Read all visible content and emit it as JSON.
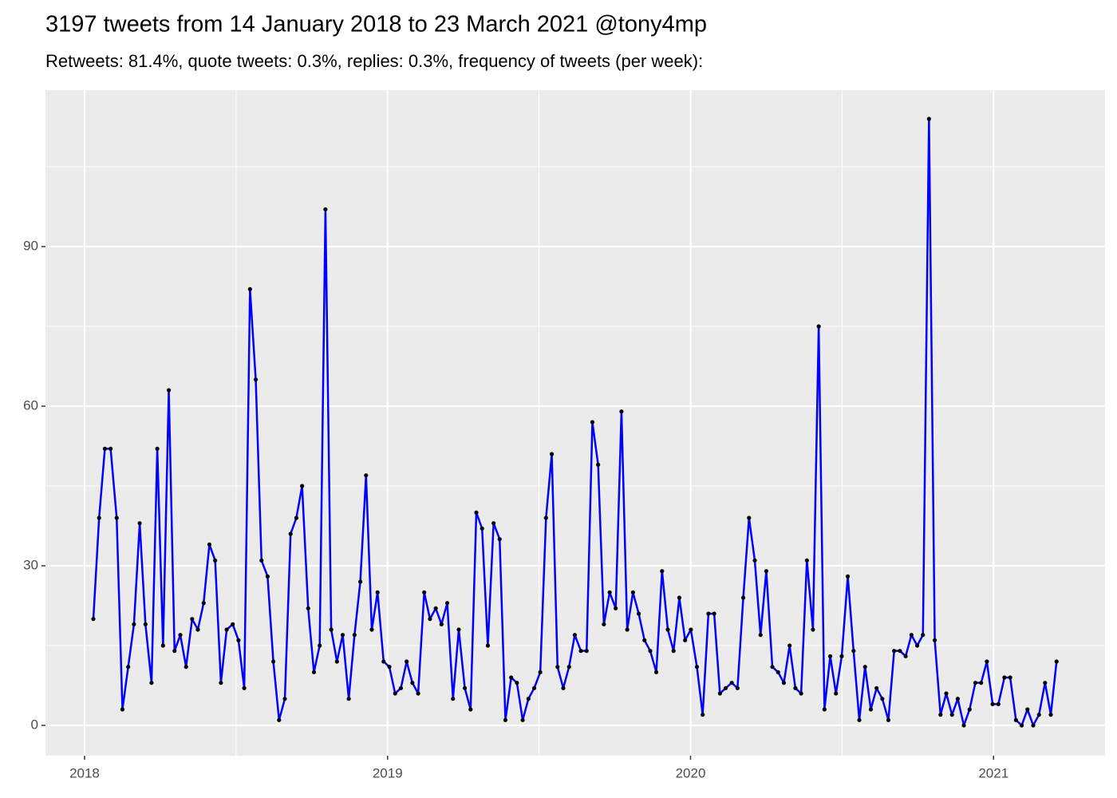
{
  "chart_data": {
    "type": "line",
    "title": "3197 tweets from 14 January 2018 to 23 March 2021 @tony4mp",
    "subtitle": "Retweets: 81.4%, quote tweets: 0.3%, replies: 0.3%, frequency of tweets (per week):",
    "color": "#0000ff",
    "point_color": "#000000",
    "background": "#ebebeb",
    "grid": true,
    "xlim": [
      2017.871,
      2021.368
    ],
    "xticks": [
      2018,
      2019,
      2020,
      2021
    ],
    "xminor": [
      2018.5,
      2019.5,
      2020.5
    ],
    "ylim": [
      -5.7,
      119.4
    ],
    "yticks": [
      0,
      30,
      60,
      90
    ],
    "yminor": [
      15,
      45,
      75,
      105
    ],
    "x": [
      2018.029,
      2018.048,
      2018.067,
      2018.086,
      2018.106,
      2018.125,
      2018.144,
      2018.163,
      2018.182,
      2018.201,
      2018.221,
      2018.24,
      2018.259,
      2018.278,
      2018.297,
      2018.316,
      2018.335,
      2018.355,
      2018.374,
      2018.393,
      2018.412,
      2018.431,
      2018.45,
      2018.469,
      2018.489,
      2018.508,
      2018.527,
      2018.546,
      2018.565,
      2018.584,
      2018.604,
      2018.623,
      2018.642,
      2018.661,
      2018.68,
      2018.699,
      2018.718,
      2018.738,
      2018.757,
      2018.776,
      2018.795,
      2018.814,
      2018.833,
      2018.852,
      2018.872,
      2018.891,
      2018.91,
      2018.929,
      2018.948,
      2018.967,
      2018.987,
      2019.006,
      2019.025,
      2019.044,
      2019.063,
      2019.082,
      2019.101,
      2019.121,
      2019.14,
      2019.159,
      2019.178,
      2019.197,
      2019.216,
      2019.235,
      2019.255,
      2019.274,
      2019.293,
      2019.312,
      2019.331,
      2019.35,
      2019.37,
      2019.389,
      2019.408,
      2019.427,
      2019.446,
      2019.465,
      2019.484,
      2019.504,
      2019.523,
      2019.542,
      2019.561,
      2019.58,
      2019.599,
      2019.618,
      2019.638,
      2019.657,
      2019.676,
      2019.695,
      2019.714,
      2019.733,
      2019.753,
      2019.772,
      2019.791,
      2019.81,
      2019.829,
      2019.848,
      2019.867,
      2019.887,
      2019.906,
      2019.925,
      2019.944,
      2019.963,
      2019.982,
      2020.001,
      2020.021,
      2020.04,
      2020.059,
      2020.078,
      2020.097,
      2020.116,
      2020.136,
      2020.155,
      2020.174,
      2020.193,
      2020.212,
      2020.231,
      2020.25,
      2020.27,
      2020.289,
      2020.308,
      2020.327,
      2020.346,
      2020.365,
      2020.384,
      2020.404,
      2020.423,
      2020.442,
      2020.461,
      2020.48,
      2020.499,
      2020.519,
      2020.538,
      2020.557,
      2020.576,
      2020.595,
      2020.614,
      2020.633,
      2020.653,
      2020.672,
      2020.691,
      2020.71,
      2020.729,
      2020.748,
      2020.767,
      2020.787,
      2020.806,
      2020.825,
      2020.844,
      2020.863,
      2020.882,
      2020.902,
      2020.921,
      2020.94,
      2020.959,
      2020.978,
      2020.997,
      2021.016,
      2021.036,
      2021.055,
      2021.074,
      2021.093,
      2021.112,
      2021.131,
      2021.15,
      2021.17,
      2021.189,
      2021.208
    ],
    "values": [
      20,
      39,
      52,
      52,
      39,
      3,
      11,
      19,
      38,
      19,
      8,
      52,
      15,
      63,
      14,
      17,
      11,
      20,
      18,
      23,
      34,
      31,
      8,
      18,
      19,
      16,
      7,
      82,
      65,
      31,
      28,
      12,
      1,
      5,
      36,
      39,
      45,
      22,
      10,
      15,
      97,
      18,
      12,
      17,
      5,
      17,
      27,
      47,
      18,
      25,
      12,
      11,
      6,
      7,
      12,
      8,
      6,
      25,
      20,
      22,
      19,
      23,
      5,
      18,
      7,
      3,
      40,
      37,
      15,
      38,
      35,
      1,
      9,
      8,
      1,
      5,
      7,
      10,
      39,
      51,
      11,
      7,
      11,
      17,
      14,
      14,
      57,
      49,
      19,
      25,
      22,
      59,
      18,
      25,
      21,
      16,
      14,
      10,
      29,
      18,
      14,
      24,
      16,
      18,
      11,
      2,
      21,
      21,
      6,
      7,
      8,
      7,
      24,
      39,
      31,
      17,
      29,
      11,
      10,
      8,
      15,
      7,
      6,
      31,
      18,
      75,
      3,
      13,
      6,
      13,
      28,
      14,
      1,
      11,
      3,
      7,
      5,
      1,
      14,
      14,
      13,
      17,
      15,
      17,
      114,
      16,
      2,
      6,
      2,
      5,
      0,
      3,
      8,
      8,
      12,
      4,
      4,
      9,
      9,
      1,
      0,
      3,
      0,
      2,
      8,
      2,
      12
    ]
  }
}
